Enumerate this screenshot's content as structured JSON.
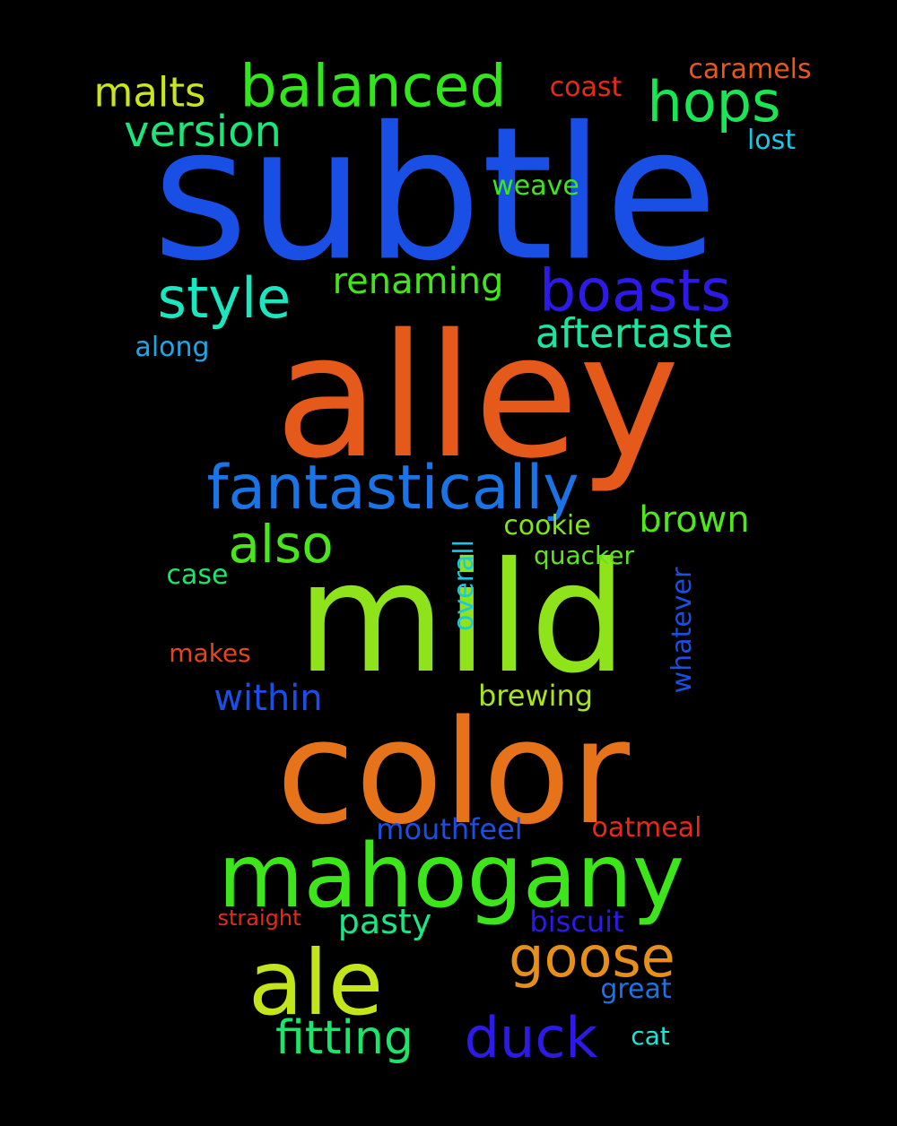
{
  "background": "#000000",
  "words": [
    {
      "text": "subtle",
      "color": "#1a4fe6"
    },
    {
      "text": "alley",
      "color": "#e5591b"
    },
    {
      "text": "mild",
      "color": "#8fe31a"
    },
    {
      "text": "color",
      "color": "#e6721a"
    },
    {
      "text": "mahogany",
      "color": "#3de61a"
    },
    {
      "text": "ale",
      "color": "#c3e61a"
    },
    {
      "text": "fantastically",
      "color": "#1a74e6"
    },
    {
      "text": "balanced",
      "color": "#31e61a"
    },
    {
      "text": "boasts",
      "color": "#2e1ae6"
    },
    {
      "text": "hops",
      "color": "#1ae653"
    },
    {
      "text": "style",
      "color": "#1ae6c0"
    },
    {
      "text": "goose",
      "color": "#e6901a"
    },
    {
      "text": "duck",
      "color": "#2e1ae6"
    },
    {
      "text": "fitting",
      "color": "#1ae66a"
    },
    {
      "text": "also",
      "color": "#48e61a"
    },
    {
      "text": "version",
      "color": "#1ae67a"
    },
    {
      "text": "malts",
      "color": "#c9e61a"
    },
    {
      "text": "aftertaste",
      "color": "#1ae6a0"
    },
    {
      "text": "renaming",
      "color": "#41e61a"
    },
    {
      "text": "brown",
      "color": "#4fe61a"
    },
    {
      "text": "within",
      "color": "#1a4fe6"
    },
    {
      "text": "pasty",
      "color": "#1ae686"
    },
    {
      "text": "caramels",
      "color": "#e5591b"
    },
    {
      "text": "coast",
      "color": "#e62a1a"
    },
    {
      "text": "lost",
      "color": "#1ac8e6"
    },
    {
      "text": "weave",
      "color": "#3de61a"
    },
    {
      "text": "along",
      "color": "#1aa8e6"
    },
    {
      "text": "cookie",
      "color": "#7fe61a"
    },
    {
      "text": "quacker",
      "color": "#5fe61a"
    },
    {
      "text": "case",
      "color": "#1ae66a"
    },
    {
      "text": "overall",
      "color": "#1ac8e6"
    },
    {
      "text": "whatever",
      "color": "#1a4fe6"
    },
    {
      "text": "makes",
      "color": "#e5451b"
    },
    {
      "text": "brewing",
      "color": "#a8e61a"
    },
    {
      "text": "mouthfeel",
      "color": "#1a4fe6"
    },
    {
      "text": "oatmeal",
      "color": "#e62a1a"
    },
    {
      "text": "straight",
      "color": "#e62a1a"
    },
    {
      "text": "biscuit",
      "color": "#2e1ae6"
    },
    {
      "text": "great",
      "color": "#1a74e6"
    },
    {
      "text": "cat",
      "color": "#1ae6d6"
    }
  ]
}
